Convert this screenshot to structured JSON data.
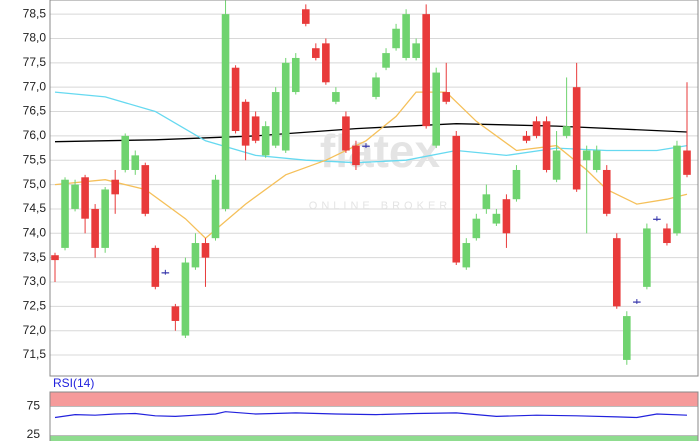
{
  "chart_data": {
    "type": "candlestick",
    "watermark": "flatex",
    "watermark_sub": "ONLINE BROKER",
    "categories": [
      null,
      null,
      null,
      null,
      null,
      null,
      null,
      null,
      null,
      null,
      null,
      null,
      null,
      null,
      null,
      null,
      null,
      null,
      null,
      null,
      null,
      null,
      null,
      null,
      null,
      null,
      null,
      null,
      null,
      null,
      null,
      null,
      null,
      null,
      null,
      null,
      null,
      null,
      null,
      null,
      null,
      null,
      null,
      null,
      null,
      null,
      null,
      null,
      null,
      null,
      null,
      null,
      null,
      null,
      null,
      null,
      null,
      null,
      null,
      null,
      null,
      null,
      null,
      null
    ],
    "open": [
      73.55,
      73.7,
      74.5,
      75.15,
      74.5,
      73.7,
      75.1,
      75.3,
      75.3,
      75.4,
      73.7,
      73.2,
      72.5,
      71.9,
      73.3,
      73.8,
      73.9,
      74.5,
      77.4,
      76.7,
      76.4,
      75.6,
      75.8,
      75.7,
      76.9,
      78.6,
      77.8,
      77.9,
      76.7,
      76.4,
      75.8,
      75.8,
      76.8,
      77.4,
      77.8,
      77.6,
      77.6,
      78.5,
      75.8,
      76.9,
      76.0,
      73.3,
      73.9,
      74.5,
      74.2,
      74.7,
      74.7,
      76.0,
      76.3,
      76.3,
      75.1,
      76.0,
      77.0,
      75.5,
      75.3,
      75.3,
      73.9,
      71.4,
      72.6,
      72.9,
      74.3,
      74.1,
      74.0,
      75.7
    ],
    "high": [
      73.6,
      75.15,
      75.1,
      75.2,
      74.6,
      74.95,
      75.3,
      76.05,
      75.7,
      75.45,
      73.75,
      73.25,
      72.55,
      73.5,
      74.0,
      73.9,
      75.2,
      78.8,
      77.45,
      76.75,
      76.5,
      76.3,
      77.0,
      77.6,
      77.7,
      78.7,
      77.9,
      78.0,
      77.0,
      76.5,
      75.9,
      75.85,
      77.3,
      77.8,
      78.3,
      78.6,
      78.0,
      78.7,
      77.4,
      77.5,
      76.1,
      73.9,
      74.4,
      75.0,
      74.5,
      74.8,
      75.4,
      76.1,
      76.4,
      76.4,
      76.1,
      77.2,
      77.5,
      75.8,
      75.8,
      75.4,
      74.0,
      72.4,
      72.65,
      74.2,
      74.35,
      74.2,
      75.9,
      77.1
    ],
    "low": [
      73.0,
      73.65,
      74.45,
      74.0,
      73.5,
      73.6,
      74.4,
      75.25,
      75.2,
      74.35,
      72.85,
      73.15,
      72.0,
      71.85,
      73.25,
      72.9,
      73.85,
      74.45,
      76.05,
      75.5,
      75.85,
      75.55,
      75.75,
      75.65,
      76.85,
      78.25,
      77.55,
      77.05,
      76.65,
      75.65,
      75.3,
      75.75,
      76.75,
      77.35,
      77.75,
      77.55,
      77.55,
      76.15,
      75.75,
      76.65,
      73.35,
      73.25,
      73.85,
      74.4,
      74.15,
      73.7,
      74.65,
      75.85,
      75.95,
      75.25,
      75.05,
      75.95,
      74.85,
      74.0,
      75.25,
      74.35,
      72.45,
      71.3,
      72.55,
      72.85,
      74.25,
      73.75,
      73.95,
      75.15
    ],
    "close": [
      73.45,
      75.1,
      75.0,
      74.3,
      73.7,
      74.9,
      74.8,
      76.0,
      75.6,
      74.4,
      72.9,
      73.2,
      72.2,
      73.4,
      73.8,
      73.5,
      75.1,
      78.5,
      76.1,
      75.8,
      75.9,
      76.2,
      76.9,
      77.5,
      77.6,
      78.3,
      77.6,
      77.1,
      76.9,
      75.7,
      75.4,
      75.8,
      77.2,
      77.7,
      78.2,
      78.5,
      77.9,
      76.2,
      77.3,
      76.7,
      73.4,
      73.8,
      74.3,
      74.8,
      74.4,
      74.0,
      75.3,
      75.9,
      76.0,
      75.3,
      75.7,
      76.2,
      74.9,
      75.7,
      75.7,
      74.4,
      72.5,
      72.3,
      72.6,
      74.1,
      74.3,
      73.8,
      75.8,
      75.2
    ],
    "up_color": "#6fd36f",
    "down_color": "#e83a3a",
    "lines": [
      {
        "color": "#000000",
        "x": [
          0,
          10,
          20,
          30,
          40,
          50,
          63
        ],
        "values": [
          75.88,
          75.92,
          76.0,
          76.15,
          76.25,
          76.2,
          76.08
        ]
      },
      {
        "color": "#66d9f0",
        "x": [
          0,
          5,
          10,
          15,
          20,
          25,
          30,
          35,
          40,
          45,
          50,
          55,
          60,
          63
        ],
        "values": [
          76.9,
          76.8,
          76.5,
          75.9,
          75.6,
          75.5,
          75.45,
          75.5,
          75.7,
          75.6,
          75.75,
          75.7,
          75.7,
          75.8
        ]
      },
      {
        "color": "#f5c05a",
        "x": [
          0,
          5,
          9,
          13,
          15,
          19,
          23,
          27,
          31,
          34,
          36,
          39,
          42,
          46,
          50,
          53,
          55,
          58,
          61,
          63
        ],
        "values": [
          75.0,
          75.1,
          74.9,
          74.3,
          73.9,
          74.6,
          75.2,
          75.5,
          75.9,
          76.4,
          76.9,
          76.9,
          76.3,
          75.7,
          75.8,
          75.3,
          74.9,
          74.6,
          74.7,
          74.8
        ]
      }
    ],
    "ylim": [
      71.07,
      78.79
    ],
    "yticks": [
      {
        "value": 71.5,
        "label": "71,5"
      },
      {
        "value": 72,
        "label": "72,0"
      },
      {
        "value": 72.5,
        "label": "72,5"
      },
      {
        "value": 73,
        "label": "73,0"
      },
      {
        "value": 73.5,
        "label": "73,5"
      },
      {
        "value": 74,
        "label": "74,0"
      },
      {
        "value": 74.5,
        "label": "74,5"
      },
      {
        "value": 75,
        "label": "75,0"
      },
      {
        "value": 75.5,
        "label": "75,5"
      },
      {
        "value": 76,
        "label": "76,0"
      },
      {
        "value": 76.5,
        "label": "76,5"
      },
      {
        "value": 77,
        "label": "77,0"
      },
      {
        "value": 77.5,
        "label": "77,5"
      },
      {
        "value": 78,
        "label": "78,0"
      },
      {
        "value": 78.5,
        "label": "78,5"
      }
    ],
    "grid": true,
    "rsi": {
      "title": "RSI(14)",
      "color": "#2222dd",
      "ylim": [
        0,
        100
      ],
      "yticks": [
        25,
        75
      ],
      "x": [
        0,
        2,
        4,
        6,
        8,
        10,
        12,
        14,
        16,
        17,
        20,
        24,
        28,
        32,
        36,
        40,
        44,
        48,
        52,
        56,
        58,
        60,
        63
      ],
      "values": [
        56,
        61,
        60,
        62,
        63,
        59,
        58,
        60,
        62,
        66,
        62,
        64,
        62,
        61,
        63,
        64,
        58,
        60,
        59,
        57,
        56,
        62,
        60
      ]
    }
  }
}
